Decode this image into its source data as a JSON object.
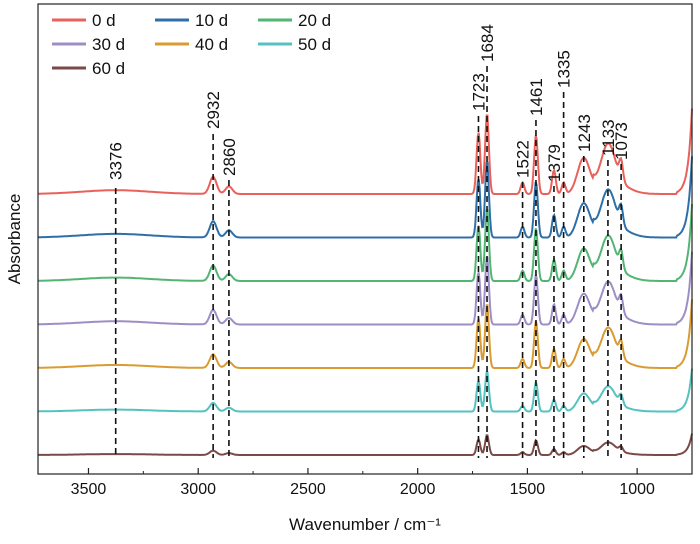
{
  "chart_data": {
    "type": "line",
    "xlabel": "Wavenumber / cm⁻¹",
    "ylabel": "Absorbance",
    "xlim": [
      3730,
      750
    ],
    "x_reversed": true,
    "x_ticks": [
      3500,
      3000,
      2500,
      2000,
      1500,
      1000
    ],
    "y_ticks": false,
    "grid": false,
    "legend_position": "top-left",
    "series": [
      {
        "name": "0   d",
        "color": "#e8615a",
        "offset": 0
      },
      {
        "name": "10 d",
        "color": "#2f6fa8",
        "offset": 1
      },
      {
        "name": "20 d",
        "color": "#52b574",
        "offset": 2
      },
      {
        "name": "30 d",
        "color": "#9d8ec6",
        "offset": 3
      },
      {
        "name": "40 d",
        "color": "#d99b32",
        "offset": 4
      },
      {
        "name": "50 d",
        "color": "#55c2c0",
        "offset": 5
      },
      {
        "name": "60 d",
        "color": "#7b4a48",
        "offset": 6
      }
    ],
    "series_amplitude": [
      1.0,
      0.95,
      0.9,
      0.85,
      0.8,
      0.5,
      0.25
    ],
    "peak_shape": [
      [
        3376,
        0.04
      ],
      [
        2932,
        0.18
      ],
      [
        2860,
        0.08
      ],
      [
        1723,
        0.65
      ],
      [
        1684,
        0.85
      ],
      [
        1522,
        0.12
      ],
      [
        1461,
        0.62
      ],
      [
        1379,
        0.25
      ],
      [
        1335,
        0.12
      ],
      [
        1243,
        0.38
      ],
      [
        1133,
        0.42
      ],
      [
        1073,
        0.2
      ]
    ],
    "annotations": [
      "3376",
      "2932",
      "2860",
      "1723",
      "1684",
      "1522",
      "1461",
      "1379",
      "1335",
      "1243",
      "1133",
      "1073"
    ],
    "annotation_x": [
      3376,
      2932,
      2860,
      1723,
      1684,
      1522,
      1461,
      1379,
      1335,
      1243,
      1133,
      1073
    ]
  }
}
